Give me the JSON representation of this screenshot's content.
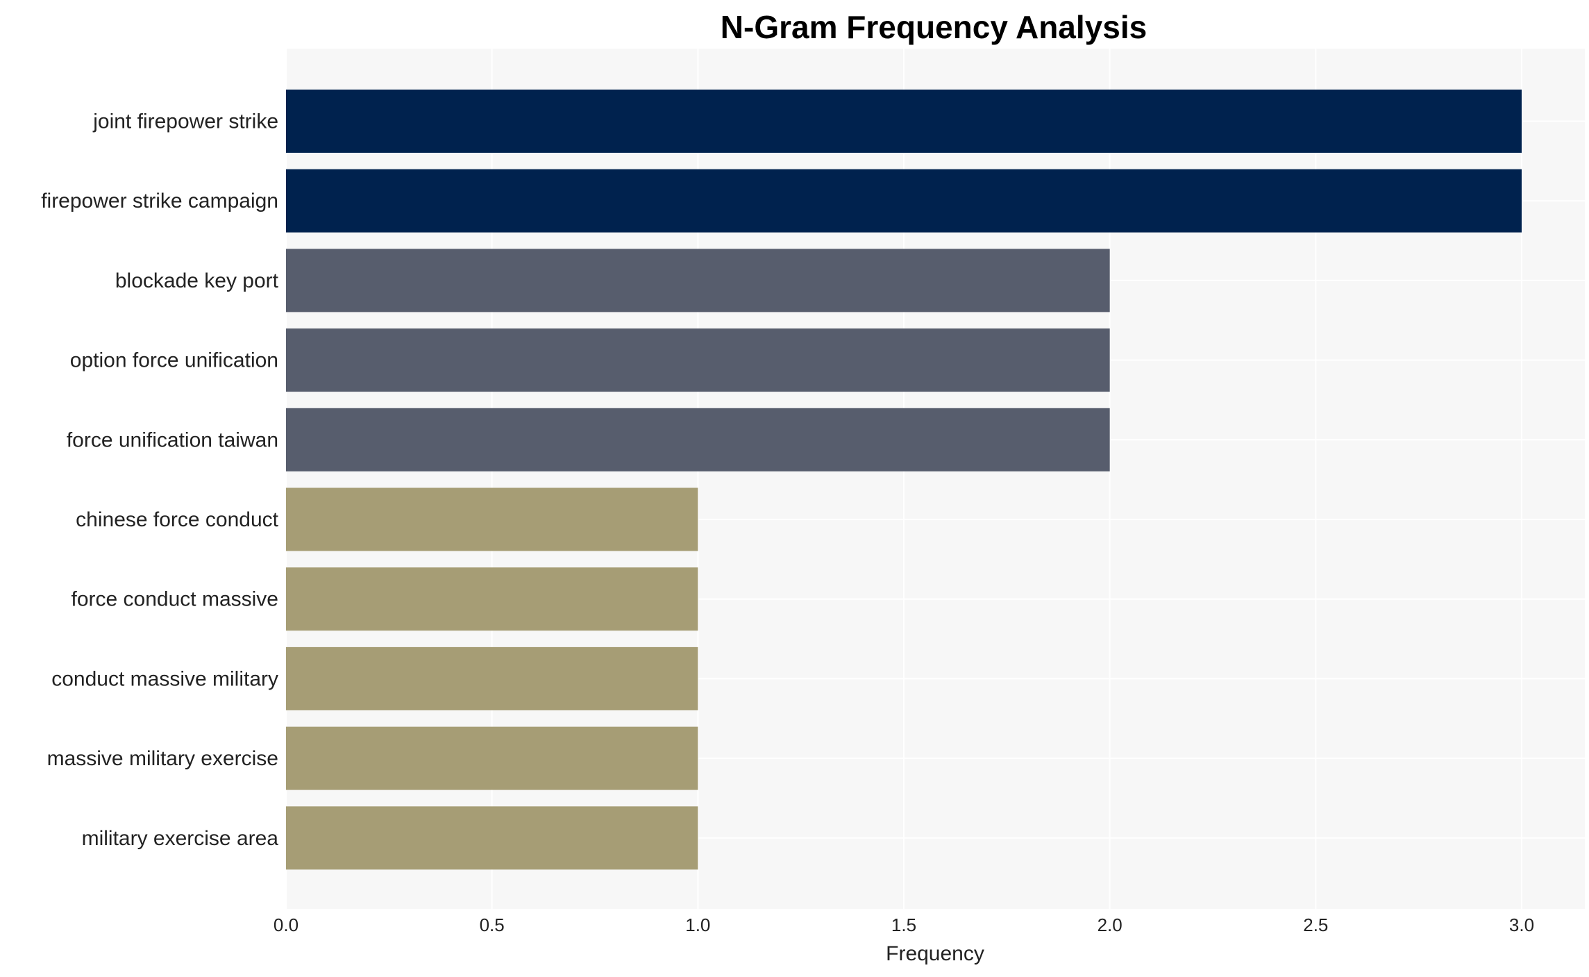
{
  "chart_data": {
    "type": "bar",
    "orientation": "horizontal",
    "title": "N-Gram Frequency Analysis",
    "xlabel": "Frequency",
    "ylabel": "",
    "xlim": [
      0,
      3.15
    ],
    "xticks": [
      "0.0",
      "0.5",
      "1.0",
      "1.5",
      "2.0",
      "2.5",
      "3.0"
    ],
    "grid": true,
    "categories": [
      "joint firepower strike",
      "firepower strike campaign",
      "blockade key port",
      "option force unification",
      "force unification taiwan",
      "chinese force conduct",
      "force conduct massive",
      "conduct massive military",
      "massive military exercise",
      "military exercise area"
    ],
    "values": [
      3,
      3,
      2,
      2,
      2,
      1,
      1,
      1,
      1,
      1
    ],
    "colors": [
      "#00224e",
      "#00224e",
      "#575d6d",
      "#575d6d",
      "#575d6d",
      "#a69d75",
      "#a69d75",
      "#a69d75",
      "#a69d75",
      "#a69d75"
    ],
    "background_color": "#f7f7f7"
  }
}
